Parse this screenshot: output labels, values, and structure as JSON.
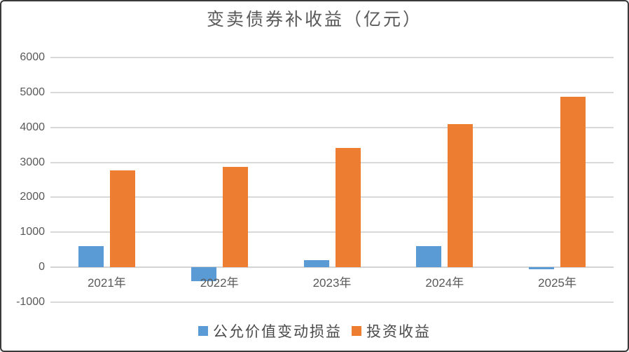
{
  "chart_data": {
    "type": "bar",
    "title": "变卖债券补收益（亿元）",
    "xlabel": "",
    "ylabel": "",
    "categories": [
      "2021年",
      "2022年",
      "2023年",
      "2024年",
      "2025年"
    ],
    "series": [
      {
        "name": "公允价值变动损益",
        "color": "#5B9BD5",
        "values": [
          600,
          -400,
          200,
          610,
          -50
        ]
      },
      {
        "name": "投资收益",
        "color": "#ED7D31",
        "values": [
          2770,
          2870,
          3410,
          4100,
          4880
        ]
      }
    ],
    "ylim": [
      -1000,
      6000
    ],
    "ytick_step": 1000,
    "yticks": [
      "6000",
      "5000",
      "4000",
      "3000",
      "2000",
      "1000",
      "0",
      "-1000"
    ],
    "grid": true,
    "legend_position": "bottom"
  },
  "colors": {
    "gridline": "#D9D9D9",
    "zero_line": "#D3D3D3",
    "axis_text": "#595959",
    "title_text": "#595959",
    "background": "#FFFFFF",
    "frame_border": "#3A3A3A"
  }
}
